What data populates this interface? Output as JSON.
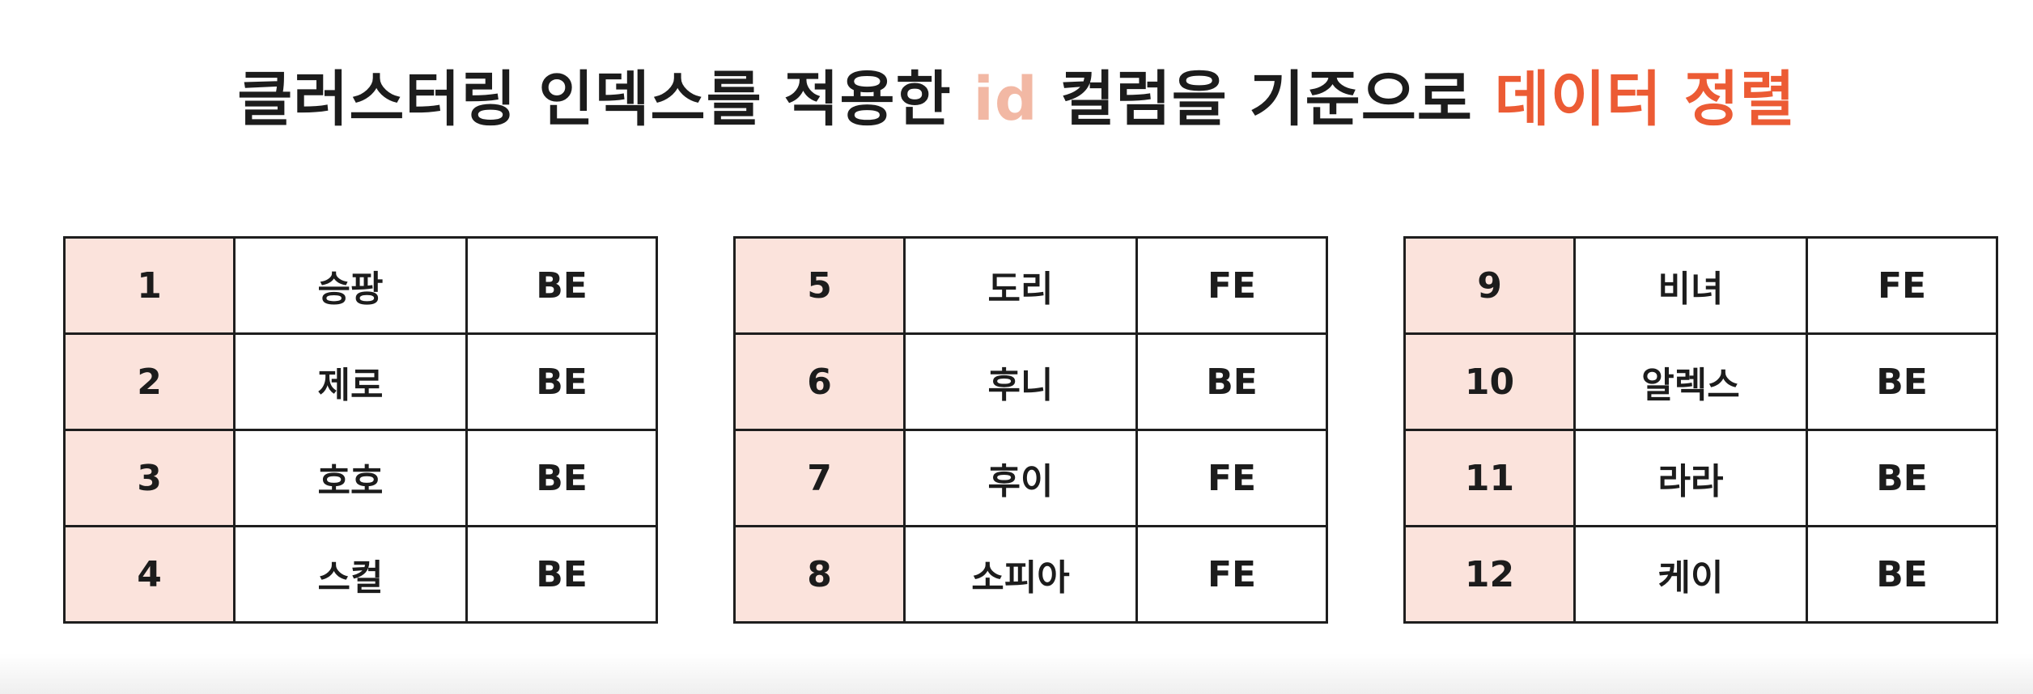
{
  "title": {
    "part1": "클러스터링 인덱스를 적용한 ",
    "part2": "id",
    "part3": " 컬럼을 기준으로 ",
    "part4": "데이터 정렬"
  },
  "colors": {
    "id_highlight": "#fbe3dc",
    "title_id_color": "#f2b8a4",
    "title_accent": "#ec5b34"
  },
  "tables": [
    {
      "rows": [
        {
          "id": "1",
          "name": "승팡",
          "team": "BE"
        },
        {
          "id": "2",
          "name": "제로",
          "team": "BE"
        },
        {
          "id": "3",
          "name": "호호",
          "team": "BE"
        },
        {
          "id": "4",
          "name": "스컬",
          "team": "BE"
        }
      ]
    },
    {
      "rows": [
        {
          "id": "5",
          "name": "도리",
          "team": "FE"
        },
        {
          "id": "6",
          "name": "후니",
          "team": "BE"
        },
        {
          "id": "7",
          "name": "후이",
          "team": "FE"
        },
        {
          "id": "8",
          "name": "소피아",
          "team": "FE"
        }
      ]
    },
    {
      "rows": [
        {
          "id": "9",
          "name": "비녀",
          "team": "FE"
        },
        {
          "id": "10",
          "name": "알렉스",
          "team": "BE"
        },
        {
          "id": "11",
          "name": "라라",
          "team": "BE"
        },
        {
          "id": "12",
          "name": "케이",
          "team": "BE"
        }
      ]
    }
  ]
}
